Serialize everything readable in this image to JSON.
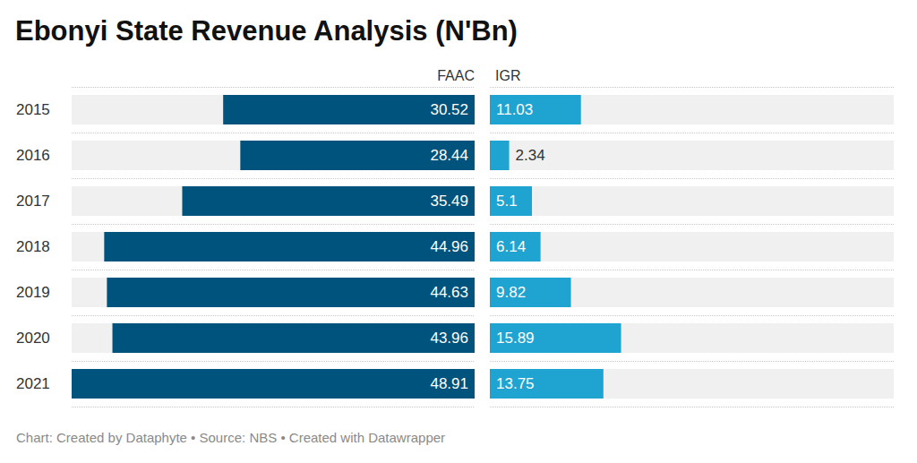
{
  "chart_data": {
    "type": "bar",
    "orientation": "horizontal",
    "title": "Ebonyi State Revenue Analysis (N'Bn)",
    "caption": "Chart: Created by Dataphyte • Source: NBS • Created with Datawrapper",
    "categories": [
      "2015",
      "2016",
      "2017",
      "2018",
      "2019",
      "2020",
      "2021"
    ],
    "series": [
      {
        "name": "FAAC",
        "color": "#00537c",
        "values": [
          30.52,
          28.44,
          35.49,
          44.96,
          44.63,
          43.96,
          48.91
        ]
      },
      {
        "name": "IGR",
        "color": "#1fa3d0",
        "values": [
          11.03,
          2.34,
          5.1,
          6.14,
          9.82,
          15.89,
          13.75
        ]
      }
    ],
    "xlim": [
      0,
      48.91
    ],
    "data_labels": true,
    "tick_labels": "y"
  }
}
